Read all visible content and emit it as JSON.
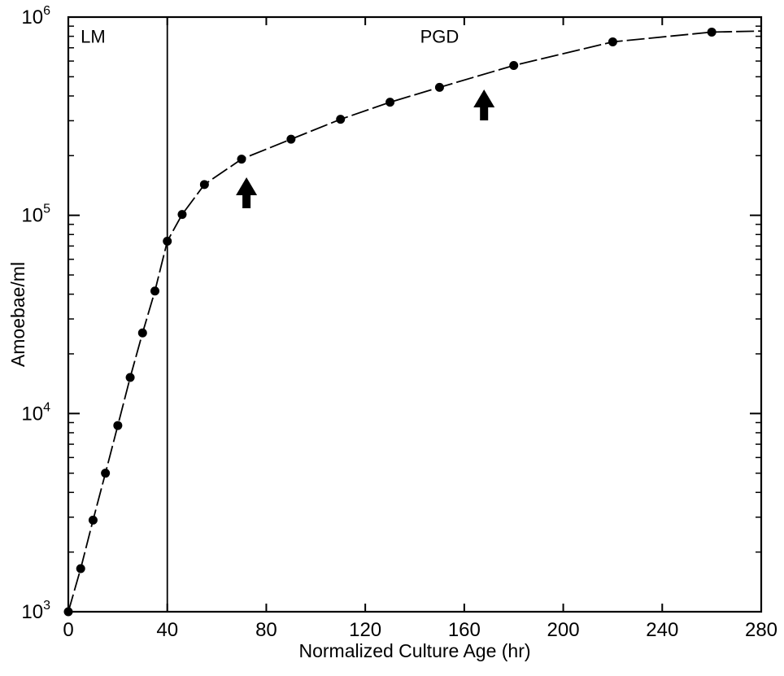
{
  "chart_data": {
    "type": "scatter",
    "title": "",
    "xlabel": "Normalized Culture Age (hr)",
    "ylabel": "Amoebae/ml",
    "xlim": [
      0,
      280
    ],
    "ylim": [
      1000,
      1000000
    ],
    "yscale": "log",
    "grid": false,
    "legend": "none",
    "x_ticks": [
      0,
      40,
      80,
      120,
      160,
      200,
      240,
      280
    ],
    "x_tick_labels": [
      "0",
      "40",
      "80",
      "120",
      "160",
      "200",
      "240",
      "280"
    ],
    "y_ticks": [
      {
        "value": 1000,
        "base": "10",
        "exp": "3"
      },
      {
        "value": 10000,
        "base": "10",
        "exp": "4"
      },
      {
        "value": 100000,
        "base": "10",
        "exp": "5"
      },
      {
        "value": 1000000,
        "base": "10",
        "exp": "6"
      }
    ],
    "series": [
      {
        "x": [
          0,
          5,
          10,
          15,
          20,
          25,
          30,
          35,
          40,
          46,
          55,
          70,
          90,
          110,
          130,
          150,
          180,
          220,
          260
        ],
        "y": [
          1000,
          1650,
          2900,
          5000,
          8700,
          15200,
          25500,
          41500,
          74000,
          101000,
          143000,
          192000,
          242000,
          305000,
          372000,
          442000,
          570000,
          750000,
          840000
        ],
        "line": "dashed",
        "marker": "filled-circle"
      }
    ],
    "annotations": [
      {
        "type": "vertical-line",
        "x": 40
      },
      {
        "type": "text",
        "text": "LM",
        "x": 10,
        "y": 800000
      },
      {
        "type": "text",
        "text": "PGD",
        "x": 150,
        "y": 800000
      },
      {
        "type": "arrow-up",
        "x": 72
      },
      {
        "type": "arrow-up",
        "x": 168
      }
    ],
    "colors": {
      "ink": "#000000",
      "background": "#ffffff"
    }
  }
}
